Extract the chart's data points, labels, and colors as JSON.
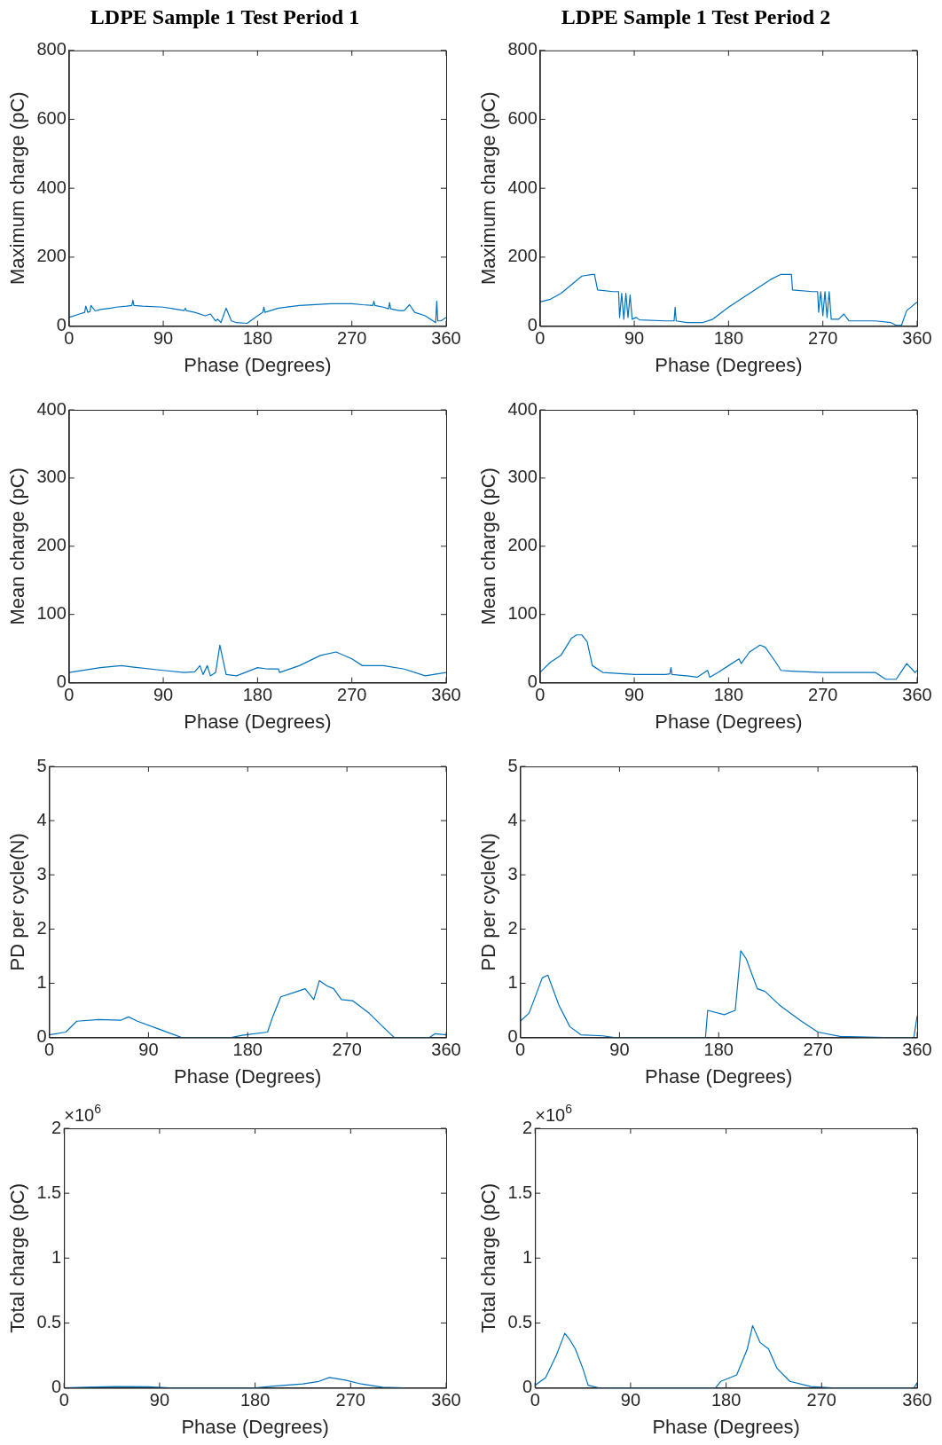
{
  "chart_data": [
    {
      "type": "line",
      "title": "LDPE Sample 1 Test Period 1",
      "xlabel": "Phase (Degrees)",
      "ylabel": "Maximum charge (pC)",
      "xlim": [
        0,
        360
      ],
      "xticks": [
        0,
        90,
        180,
        270,
        360
      ],
      "ylim": [
        0,
        800
      ],
      "yticks": [
        0,
        200,
        400,
        600,
        800
      ],
      "color": "#0072bd",
      "x": [
        0,
        10,
        15,
        16,
        18,
        20,
        21,
        25,
        30,
        40,
        45,
        55,
        60,
        61,
        62,
        70,
        90,
        100,
        110,
        111,
        112,
        120,
        130,
        135,
        140,
        142,
        145,
        150,
        155,
        160,
        170,
        180,
        185,
        186,
        187,
        200,
        220,
        250,
        270,
        280,
        290,
        291,
        292,
        300,
        305,
        306,
        307,
        315,
        320,
        325,
        330,
        340,
        350,
        351,
        352,
        355,
        360
      ],
      "values": [
        25,
        35,
        40,
        58,
        40,
        42,
        60,
        44,
        48,
        52,
        55,
        58,
        60,
        75,
        60,
        58,
        55,
        50,
        45,
        52,
        45,
        40,
        30,
        35,
        15,
        20,
        10,
        52,
        15,
        10,
        8,
        30,
        40,
        55,
        40,
        52,
        60,
        65,
        65,
        62,
        60,
        72,
        60,
        55,
        50,
        68,
        50,
        45,
        45,
        62,
        40,
        30,
        10,
        72,
        15,
        15,
        25
      ]
    },
    {
      "type": "line",
      "title": "LDPE Sample 1 Test Period 2",
      "xlabel": "Phase (Degrees)",
      "ylabel": "Maximum charge (pC)",
      "xlim": [
        0,
        360
      ],
      "xticks": [
        0,
        90,
        180,
        270,
        360
      ],
      "ylim": [
        0,
        800
      ],
      "yticks": [
        0,
        200,
        400,
        600,
        800
      ],
      "color": "#0072bd",
      "x": [
        0,
        10,
        20,
        30,
        40,
        50,
        52,
        55,
        70,
        75,
        76,
        78,
        80,
        82,
        84,
        86,
        88,
        92,
        95,
        120,
        128,
        129,
        130,
        140,
        155,
        165,
        180,
        200,
        220,
        230,
        240,
        241,
        260,
        265,
        266,
        268,
        270,
        272,
        274,
        276,
        278,
        285,
        290,
        295,
        300,
        320,
        335,
        340,
        345,
        350,
        360
      ],
      "values": [
        70,
        78,
        95,
        120,
        145,
        150,
        150,
        105,
        100,
        100,
        25,
        95,
        20,
        95,
        25,
        90,
        20,
        25,
        18,
        15,
        15,
        55,
        15,
        10,
        10,
        20,
        55,
        95,
        135,
        150,
        150,
        105,
        100,
        100,
        40,
        100,
        30,
        100,
        25,
        100,
        20,
        20,
        35,
        15,
        15,
        15,
        10,
        2,
        2,
        45,
        70
      ]
    },
    {
      "type": "line",
      "xlabel": "Phase (Degrees)",
      "ylabel": "Mean charge (pC)",
      "xlim": [
        0,
        360
      ],
      "xticks": [
        0,
        90,
        180,
        270,
        360
      ],
      "ylim": [
        0,
        400
      ],
      "yticks": [
        0,
        100,
        200,
        300,
        400
      ],
      "color": "#0072bd",
      "x": [
        0,
        30,
        50,
        60,
        90,
        110,
        120,
        125,
        128,
        132,
        135,
        140,
        144,
        150,
        160,
        180,
        190,
        200,
        201,
        220,
        240,
        255,
        270,
        280,
        300,
        320,
        340,
        360
      ],
      "values": [
        15,
        22,
        25,
        23,
        18,
        15,
        16,
        25,
        12,
        25,
        10,
        15,
        55,
        12,
        10,
        22,
        20,
        20,
        15,
        25,
        40,
        45,
        35,
        25,
        25,
        20,
        10,
        15
      ]
    },
    {
      "type": "line",
      "xlabel": "Phase (Degrees)",
      "ylabel": "Mean charge (pC)",
      "xlim": [
        0,
        360
      ],
      "xticks": [
        0,
        90,
        180,
        270,
        360
      ],
      "ylim": [
        0,
        400
      ],
      "yticks": [
        0,
        100,
        200,
        300,
        400
      ],
      "color": "#0072bd",
      "x": [
        0,
        10,
        20,
        30,
        35,
        40,
        45,
        50,
        60,
        90,
        120,
        124,
        125,
        126,
        140,
        150,
        160,
        162,
        170,
        180,
        190,
        192,
        200,
        210,
        215,
        225,
        230,
        240,
        270,
        300,
        320,
        330,
        340,
        350,
        355,
        358,
        360
      ],
      "values": [
        15,
        30,
        40,
        65,
        70,
        70,
        60,
        25,
        15,
        12,
        12,
        13,
        22,
        12,
        10,
        8,
        18,
        8,
        15,
        25,
        35,
        28,
        45,
        55,
        52,
        30,
        18,
        17,
        15,
        15,
        15,
        5,
        5,
        28,
        20,
        15,
        18
      ]
    },
    {
      "type": "line",
      "xlabel": "Phase (Degrees)",
      "ylabel": "PD per cycle(N)",
      "xlim": [
        0,
        360
      ],
      "xticks": [
        0,
        90,
        180,
        270,
        360
      ],
      "ylim": [
        0,
        5
      ],
      "yticks": [
        0,
        1,
        2,
        3,
        4,
        5
      ],
      "color": "#0072bd",
      "x": [
        0,
        15,
        25,
        45,
        65,
        72,
        80,
        100,
        120,
        165,
        175,
        198,
        203,
        210,
        225,
        232,
        240,
        245,
        252,
        258,
        265,
        275,
        290,
        305,
        313,
        345,
        350,
        360
      ],
      "values": [
        0.05,
        0.1,
        0.3,
        0.33,
        0.32,
        0.38,
        0.3,
        0.15,
        0,
        0,
        0.04,
        0.1,
        0.4,
        0.75,
        0.85,
        0.9,
        0.7,
        1.05,
        0.95,
        0.9,
        0.7,
        0.68,
        0.45,
        0.15,
        0,
        0,
        0.07,
        0.05
      ]
    },
    {
      "type": "line",
      "xlabel": "Phase (Degrees)",
      "ylabel": "PD per cycle(N)",
      "xlim": [
        0,
        360
      ],
      "xticks": [
        0,
        90,
        180,
        270,
        360
      ],
      "ylim": [
        0,
        5
      ],
      "yticks": [
        0,
        1,
        2,
        3,
        4,
        5
      ],
      "color": "#0072bd",
      "x": [
        0,
        8,
        20,
        25,
        35,
        45,
        55,
        75,
        85,
        168,
        170,
        185,
        195,
        200,
        205,
        215,
        222,
        235,
        255,
        270,
        290,
        330,
        357,
        360
      ],
      "values": [
        0.3,
        0.45,
        1.1,
        1.15,
        0.6,
        0.2,
        0.05,
        0.03,
        0,
        0,
        0.5,
        0.42,
        0.5,
        1.6,
        1.45,
        0.9,
        0.85,
        0.6,
        0.3,
        0.1,
        0.02,
        0,
        0,
        0.4
      ]
    },
    {
      "type": "line",
      "xlabel": "Phase (Degrees)",
      "ylabel": "Total charge (pC)",
      "annotations": [
        "×10$^{6}$"
      ],
      "xlim": [
        0,
        360
      ],
      "xticks": [
        0,
        90,
        180,
        270,
        360
      ],
      "ylim": [
        0,
        2
      ],
      "yticks": [
        0,
        0.5,
        1,
        1.5,
        2
      ],
      "color": "#0072bd",
      "x": [
        0,
        20,
        50,
        80,
        100,
        180,
        200,
        225,
        240,
        250,
        265,
        280,
        300,
        320
      ],
      "values": [
        0,
        0.005,
        0.01,
        0.008,
        0,
        0,
        0.015,
        0.03,
        0.05,
        0.08,
        0.06,
        0.03,
        0.005,
        0
      ]
    },
    {
      "type": "line",
      "xlabel": "Phase (Degrees)",
      "ylabel": "Total charge (pC)",
      "annotations": [
        "×10$^{6}$"
      ],
      "xlim": [
        0,
        360
      ],
      "xticks": [
        0,
        90,
        180,
        270,
        360
      ],
      "ylim": [
        0,
        2
      ],
      "yticks": [
        0,
        0.5,
        1,
        1.5,
        2
      ],
      "color": "#0072bd",
      "x": [
        0,
        10,
        20,
        28,
        32,
        38,
        45,
        50,
        60,
        170,
        175,
        190,
        200,
        205,
        212,
        220,
        228,
        240,
        260,
        280,
        357,
        360
      ],
      "values": [
        0.02,
        0.08,
        0.25,
        0.42,
        0.38,
        0.3,
        0.15,
        0.02,
        0,
        0,
        0.05,
        0.1,
        0.3,
        0.48,
        0.35,
        0.3,
        0.15,
        0.05,
        0.01,
        0,
        0,
        0.04
      ]
    }
  ]
}
